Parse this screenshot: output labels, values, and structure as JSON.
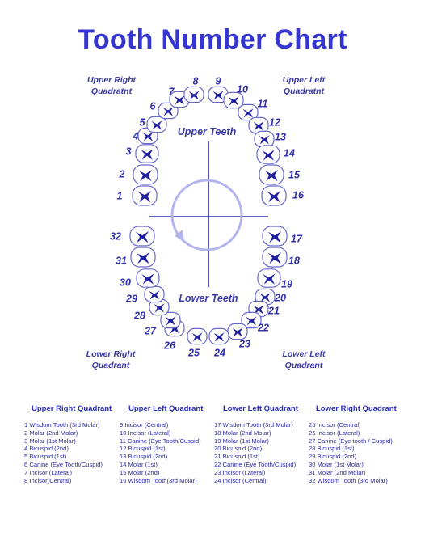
{
  "title": "Tooth Number Chart",
  "quadrant_labels": {
    "upper_right": "Upper Right\nQuadratnt",
    "upper_left": "Upper Left\nQuadratnt",
    "lower_right": "Lower Right\nQuadrant",
    "lower_left": "Lower Left\nQuadrant"
  },
  "arch_labels": {
    "upper": "Upper Teeth",
    "lower": "Lower Teeth"
  },
  "colors": {
    "title": "#3535d0",
    "tooth_outline": "#6868c8",
    "tooth_fill": "#2020a0",
    "guide": "#8888dd"
  },
  "tooth_numbers": [
    "1",
    "2",
    "3",
    "4",
    "5",
    "6",
    "7",
    "8",
    "9",
    "10",
    "11",
    "12",
    "13",
    "14",
    "15",
    "16",
    "17",
    "18",
    "19",
    "20",
    "21",
    "22",
    "23",
    "24",
    "25",
    "26",
    "27",
    "28",
    "29",
    "30",
    "31",
    "32"
  ],
  "legend": [
    {
      "heading": "Upper Right Quadrant",
      "items": [
        "1 Wisdom Tooth (3rd Molar)",
        "2 Molar (2nd Molar)",
        "3 Molar (1st Molar)",
        "4 Bicuspid (2nd)",
        "5 Bicuspid (1st)",
        "6 Canine (Eye Tooth/Cuspid)",
        "7 Incisor (Lateral)",
        "8 Incisor(Central)"
      ]
    },
    {
      "heading": "Upper Left Quadrant",
      "items": [
        "9 Incisor (Central)",
        "10 Incisor (Lateral)",
        "11 Canine (Eye Tooth/Cuspid)",
        "12 Bicuspid (1st)",
        "13 Bicuspid (2nd)",
        "14 Molar (1st)",
        "15 Molar (2nd)",
        "16 Wisdom Tooth(3rd Molar)"
      ]
    },
    {
      "heading": "Lower Left Quadrant",
      "items": [
        "17 Wisdom Tooth (3rd Molar)",
        "18 Molar (2nd Molar)",
        "19 Molar (1st Molar)",
        "20 Bicuspid (2nd)",
        "21 Bicuspid (1st)",
        "22 Canine (Eye Tooth/Cuspid)",
        "23 Incisor (Lateral)",
        "24 Incisor (Central)"
      ]
    },
    {
      "heading": "Lower Right Quadrant",
      "items": [
        "25 Incisor (Central)",
        "26 Incisor (Lateral)",
        "27 Canine (Eye tooth / Cuspid)",
        "28 Bicuspid (1st)",
        "29 Bicuspid (2nd)",
        "30 Molar (1st Molar)",
        "31 Molar (2nd Molar)",
        "32 Wisdom Tooth (3rd Molar)"
      ]
    }
  ]
}
